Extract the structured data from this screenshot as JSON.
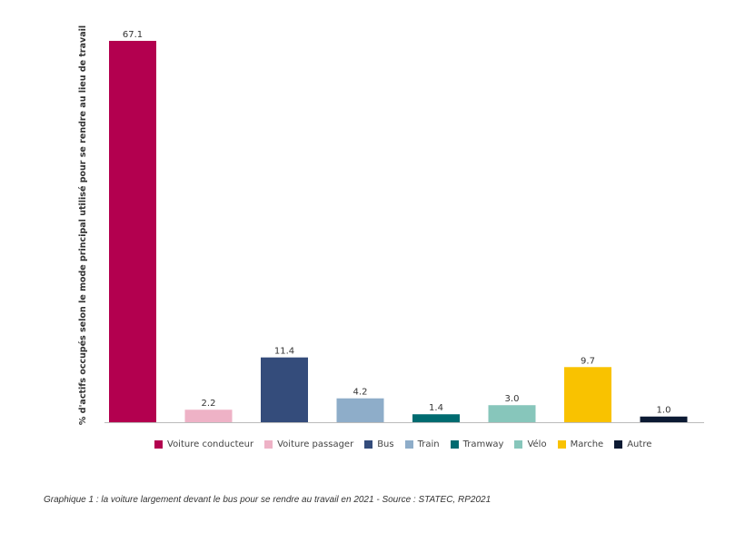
{
  "chart_data": {
    "type": "bar",
    "title": "",
    "xlabel": "",
    "ylabel": "% d'actifs occupés selon le mode principal utilisé pour se rendre au lieu de travail",
    "categories": [
      "Voiture conducteur",
      "Voiture passager",
      "Bus",
      "Train",
      "Tramway",
      "Vélo",
      "Marche",
      "Autre"
    ],
    "values": [
      67.1,
      2.2,
      11.4,
      4.2,
      1.4,
      3.0,
      9.7,
      1.0
    ],
    "value_labels": [
      "67.1",
      "2.2",
      "11.4",
      "4.2",
      "1.4",
      "3.0",
      "9.7",
      "1.0"
    ],
    "colors": [
      "#b3004f",
      "#eeb2c6",
      "#344c7b",
      "#8eadc9",
      "#006b70",
      "#87c6bb",
      "#f9c200",
      "#0c1a33"
    ],
    "ylim": [
      0,
      67.1
    ],
    "grid": false,
    "legend_placement": "bottom"
  },
  "caption": "Graphique 1 : la voiture largement devant le bus pour se rendre au travail en 2021 - Source : STATEC, RP2021"
}
